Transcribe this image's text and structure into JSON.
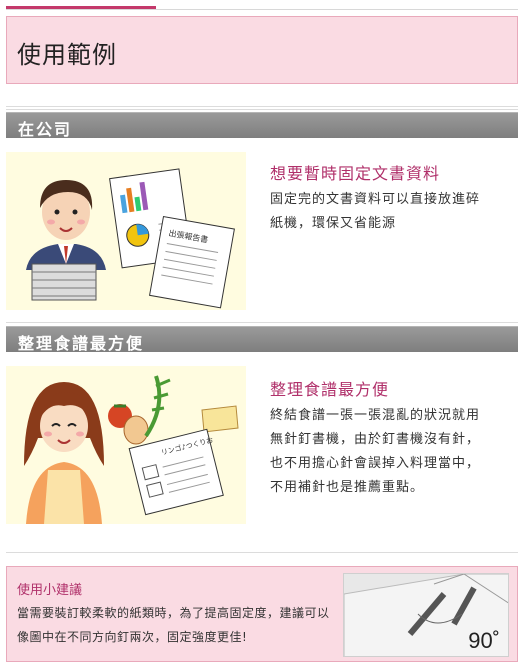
{
  "page_title": "使用範例",
  "sections": [
    {
      "bar_label": "在公司",
      "heading": "想要暫時固定文書資料",
      "body": "固定完的文書資料可以直接放進碎紙機，環保又省能源",
      "illustration_text": "出張報告書"
    },
    {
      "bar_label": "整理食譜最方便",
      "heading": "整理食譜最方便",
      "body": "終結食譜一張一張混亂的狀況就用無針釘書機，由於釘書機沒有針，也不用擔心針會誤掉入料理當中，不用補針也是推薦重點。",
      "illustration_text": "リンゴ♪つくりお"
    }
  ],
  "tip": {
    "title": "使用小建議",
    "body": "當需要裝訂較柔軟的紙類時，為了提高固定度，建議可以像圖中在不同方向釘兩次，固定強度更佳!",
    "angle_label": "90˚"
  },
  "colors": {
    "accent": "#c4396b",
    "title_bg": "#fadbe3",
    "heading_text": "#b0306a",
    "section_bar": "#8c8c8c",
    "illustration_bg": "#fffce0"
  }
}
